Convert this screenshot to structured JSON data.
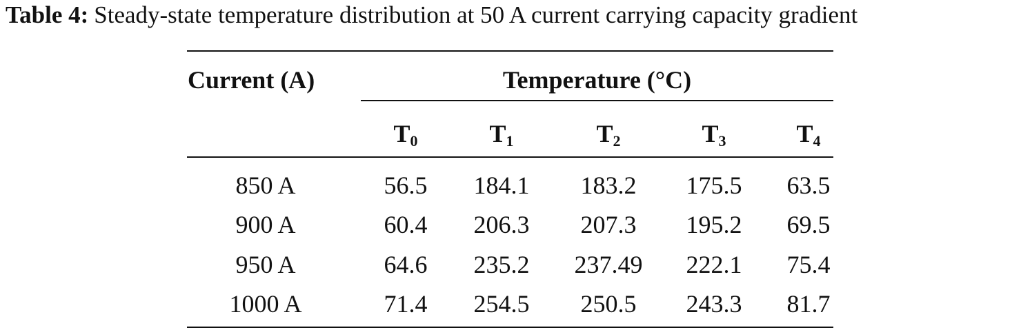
{
  "caption": {
    "label": "Table 4:",
    "text": "Steady-state temperature distribution at 50 A current carrying capacity gradient"
  },
  "table": {
    "row_header": "Current (A)",
    "group_header": "Temperature (°C)",
    "columns": [
      {
        "base": "T",
        "sub": "0"
      },
      {
        "base": "T",
        "sub": "1"
      },
      {
        "base": "T",
        "sub": "2"
      },
      {
        "base": "T",
        "sub": "3"
      },
      {
        "base": "T",
        "sub": "4"
      }
    ],
    "rows": [
      {
        "current": "850 A",
        "values": [
          "56.5",
          "184.1",
          "183.2",
          "175.5",
          "63.5"
        ]
      },
      {
        "current": "900 A",
        "values": [
          "60.4",
          "206.3",
          "207.3",
          "195.2",
          "69.5"
        ]
      },
      {
        "current": "950 A",
        "values": [
          "64.6",
          "235.2",
          "237.49",
          "222.1",
          "75.4"
        ]
      },
      {
        "current": "1000 A",
        "values": [
          "71.4",
          "254.5",
          "250.5",
          "243.3",
          "81.7"
        ]
      }
    ]
  }
}
